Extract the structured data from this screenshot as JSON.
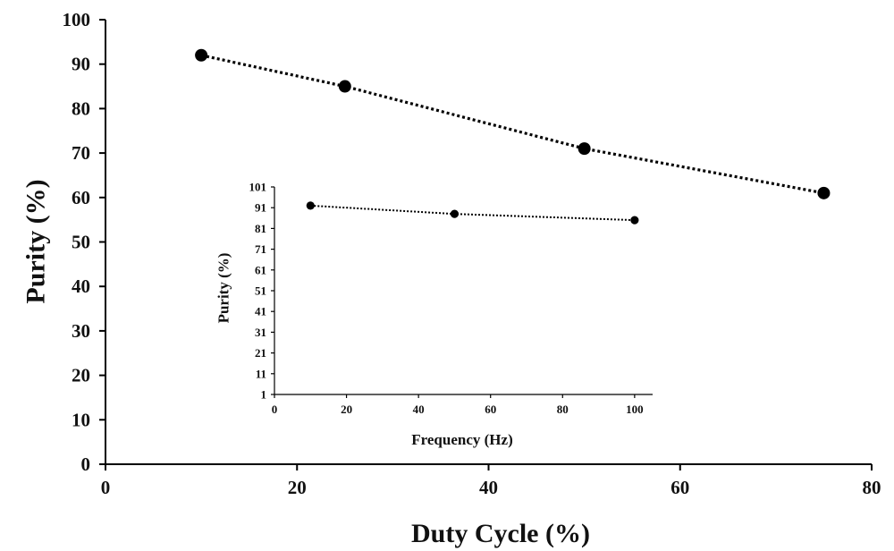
{
  "chart_data": [
    {
      "id": "main",
      "type": "line",
      "title": "",
      "xlabel": "Duty Cycle (%)",
      "ylabel": "Purity (%)",
      "xlim": [
        0,
        80
      ],
      "ylim": [
        0,
        100
      ],
      "xticks": [
        0,
        20,
        40,
        60,
        80
      ],
      "yticks": [
        0,
        10,
        20,
        30,
        40,
        50,
        60,
        70,
        80,
        90,
        100
      ],
      "grid": false,
      "line_style": "dotted",
      "marker": "filled-circle",
      "color": "#000000",
      "series": [
        {
          "name": "",
          "x": [
            10,
            25,
            50,
            75
          ],
          "y": [
            92,
            85,
            71,
            61
          ]
        }
      ]
    },
    {
      "id": "inset",
      "type": "line",
      "title": "",
      "xlabel": "Frequency (Hz)",
      "ylabel": "Purity (%)",
      "xlim": [
        0,
        105
      ],
      "ylim": [
        1,
        101
      ],
      "xticks": [
        0,
        20,
        40,
        60,
        80,
        100
      ],
      "yticks": [
        1,
        11,
        21,
        31,
        41,
        51,
        61,
        71,
        81,
        91,
        101
      ],
      "grid": false,
      "line_style": "dotted",
      "marker": "filled-circle",
      "color": "#000000",
      "series": [
        {
          "name": "",
          "x": [
            10,
            50,
            100
          ],
          "y": [
            92,
            88,
            85
          ]
        }
      ]
    }
  ]
}
